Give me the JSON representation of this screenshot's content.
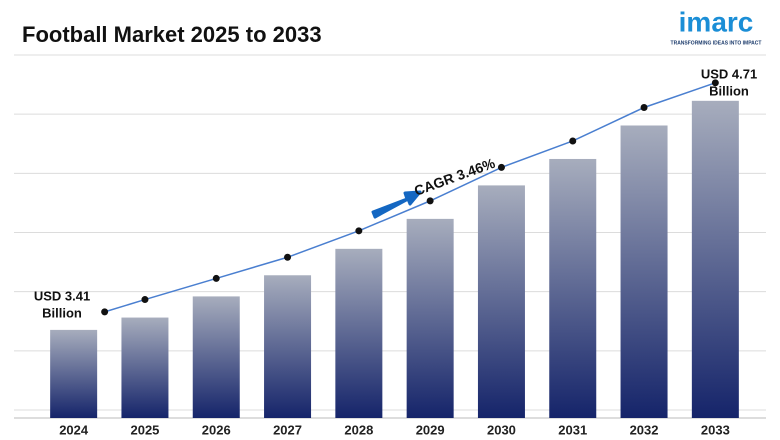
{
  "chart_data": {
    "type": "bar",
    "title": "Football Market 2025 to 2033",
    "logo": {
      "name": "imarc",
      "tagline": "TRANSFORMING IDEAS INTO IMPACT"
    },
    "categories": [
      "2024",
      "2025",
      "2026",
      "2027",
      "2028",
      "2029",
      "2030",
      "2031",
      "2032",
      "2033"
    ],
    "values": [
      3.41,
      3.48,
      3.6,
      3.72,
      3.87,
      4.04,
      4.23,
      4.38,
      4.57,
      4.71
    ],
    "ylim": [
      2.91,
      4.97
    ],
    "grid": true,
    "color_top": "#a7adbd",
    "color_bottom": "#15246a",
    "line_color": "#4a7fd0",
    "start_label": [
      "USD 3.41",
      "Billion"
    ],
    "end_label": [
      "USD 4.71",
      "Billion"
    ],
    "cagr_label": "CAGR 3.46%"
  }
}
